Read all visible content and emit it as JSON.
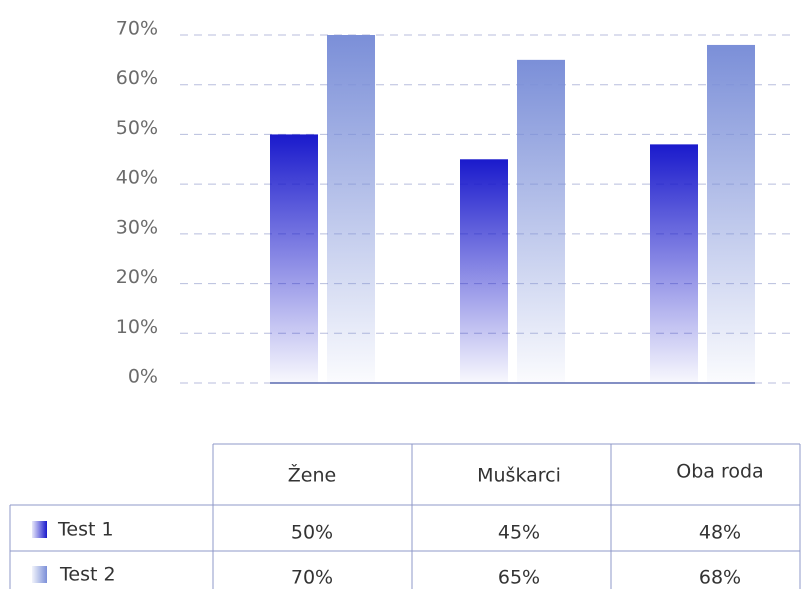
{
  "chart_data": {
    "type": "bar",
    "categories": [
      "Žene",
      "Muškarci",
      "Oba roda"
    ],
    "series": [
      {
        "name": "Test 1",
        "color": "#1a1acc",
        "values": [
          50,
          45,
          48
        ],
        "value_labels": [
          "50%",
          "45%",
          "48%"
        ]
      },
      {
        "name": "Test 2",
        "color": "#7b8fd8",
        "values": [
          70,
          65,
          68
        ],
        "value_labels": [
          "70%",
          "65%",
          "68%"
        ]
      }
    ],
    "ylim": [
      0,
      70
    ],
    "yticks": [
      {
        "value": 0,
        "label": "0%"
      },
      {
        "value": 10,
        "label": "10%"
      },
      {
        "value": 20,
        "label": "20%"
      },
      {
        "value": 30,
        "label": "30%"
      },
      {
        "value": 40,
        "label": "40%"
      },
      {
        "value": 50,
        "label": "50%"
      },
      {
        "value": 60,
        "label": "60%"
      },
      {
        "value": 70,
        "label": "70%"
      }
    ],
    "grid": true
  }
}
